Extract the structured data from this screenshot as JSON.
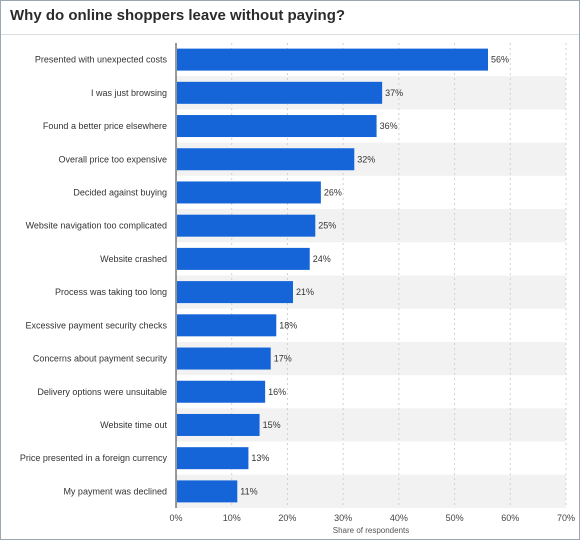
{
  "title": "Why do online shoppers leave without paying?",
  "colors": {
    "bar": "#1565d8",
    "band": "#f2f2f2",
    "grid": "#d0d0d0",
    "axis": "#333333"
  },
  "chart_data": {
    "type": "bar",
    "orientation": "horizontal",
    "categories": [
      "Presented with unexpected costs",
      "I was just browsing",
      "Found a better price elsewhere",
      "Overall price too expensive",
      "Decided against buying",
      "Website navigation too complicated",
      "Website crashed",
      "Process was taking too long",
      "Excessive payment security checks",
      "Concerns about payment security",
      "Delivery options were unsuitable",
      "Website time out",
      "Price presented in a foreign currency",
      "My payment was declined"
    ],
    "values": [
      56,
      37,
      36,
      32,
      26,
      25,
      24,
      21,
      18,
      17,
      16,
      15,
      13,
      11
    ],
    "value_labels": [
      "56%",
      "37%",
      "36%",
      "32%",
      "26%",
      "25%",
      "24%",
      "21%",
      "18%",
      "17%",
      "16%",
      "15%",
      "13%",
      "11%"
    ],
    "xlim": [
      0,
      70
    ],
    "x_ticks": [
      0,
      10,
      20,
      30,
      40,
      50,
      60,
      70
    ],
    "x_tick_labels": [
      "0%",
      "10%",
      "20%",
      "30%",
      "40%",
      "50%",
      "60%",
      "70%"
    ],
    "xlabel": "Share of respondents",
    "ylabel": "",
    "grid": true,
    "legend": "none"
  }
}
